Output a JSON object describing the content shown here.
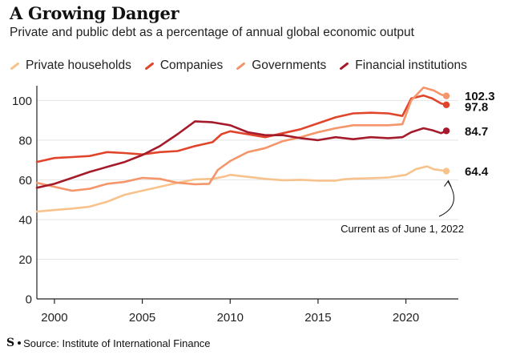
{
  "header": {
    "title": "A Growing Danger",
    "subtitle": "Private and public debt as a percentage of annual global economic output"
  },
  "source": {
    "logo": "S",
    "text": "Source: Institute of International Finance"
  },
  "annotation": "Current as of June 1, 2022",
  "chart_data": {
    "type": "line",
    "title": "A Growing Danger",
    "subtitle": "Private and public debt as a percentage of annual global economic output",
    "xlabel": "",
    "ylabel": "",
    "xlim": [
      1999,
      2022.8
    ],
    "ylim": [
      0,
      105
    ],
    "x_ticks": [
      2000,
      2005,
      2010,
      2015,
      2020
    ],
    "y_ticks": [
      0,
      20,
      40,
      60,
      80,
      100
    ],
    "grid": "horizontal",
    "legend": "top",
    "series": [
      {
        "name": "Private households",
        "color": "#f7c28c",
        "end_label": "64.4",
        "points": [
          [
            1999,
            44
          ],
          [
            2000,
            44.8
          ],
          [
            2001,
            45.5
          ],
          [
            2002,
            46.5
          ],
          [
            2003,
            49
          ],
          [
            2004,
            52.5
          ],
          [
            2005,
            54.5
          ],
          [
            2006,
            56.5
          ],
          [
            2007,
            58.5
          ],
          [
            2008,
            60.2
          ],
          [
            2009,
            60.5
          ],
          [
            2009.6,
            61.5
          ],
          [
            2010,
            62.5
          ],
          [
            2011,
            61.5
          ],
          [
            2012,
            60.5
          ],
          [
            2013,
            59.8
          ],
          [
            2014,
            60
          ],
          [
            2015,
            59.6
          ],
          [
            2016,
            59.6
          ],
          [
            2016.5,
            60.3
          ],
          [
            2017,
            60.6
          ],
          [
            2018,
            60.8
          ],
          [
            2019,
            61.2
          ],
          [
            2020,
            62.5
          ],
          [
            2020.6,
            65.5
          ],
          [
            2021.2,
            66.8
          ],
          [
            2021.6,
            65.3
          ],
          [
            2022,
            64.8
          ],
          [
            2022.3,
            64.4
          ]
        ]
      },
      {
        "name": "Companies",
        "color": "#e0452b",
        "end_label": "97.8",
        "points": [
          [
            1999,
            69
          ],
          [
            2000,
            71
          ],
          [
            2001,
            71.5
          ],
          [
            2002,
            72
          ],
          [
            2003,
            74
          ],
          [
            2004,
            73.5
          ],
          [
            2005,
            72.8
          ],
          [
            2006,
            74
          ],
          [
            2007,
            74.5
          ],
          [
            2008,
            77
          ],
          [
            2009,
            79
          ],
          [
            2009.5,
            83
          ],
          [
            2010,
            84.5
          ],
          [
            2011,
            83
          ],
          [
            2012,
            81.5
          ],
          [
            2013,
            83.5
          ],
          [
            2014,
            85.5
          ],
          [
            2015,
            88.5
          ],
          [
            2016,
            91.5
          ],
          [
            2017,
            93.5
          ],
          [
            2018,
            93.8
          ],
          [
            2019,
            93.5
          ],
          [
            2019.8,
            92.2
          ],
          [
            2020.3,
            101
          ],
          [
            2021,
            102.5
          ],
          [
            2021.5,
            101
          ],
          [
            2022,
            98.5
          ],
          [
            2022.3,
            97.8
          ]
        ]
      },
      {
        "name": "Governments",
        "color": "#f4956a",
        "end_label": "102.3",
        "points": [
          [
            1999,
            58.5
          ],
          [
            2000,
            56.5
          ],
          [
            2001,
            54.5
          ],
          [
            2002,
            55.5
          ],
          [
            2003,
            58
          ],
          [
            2004,
            59
          ],
          [
            2005,
            61
          ],
          [
            2006,
            60.5
          ],
          [
            2007,
            58.5
          ],
          [
            2008,
            57.8
          ],
          [
            2008.8,
            58
          ],
          [
            2009.3,
            65
          ],
          [
            2010,
            69.5
          ],
          [
            2011,
            74
          ],
          [
            2012,
            76
          ],
          [
            2013,
            79.5
          ],
          [
            2014,
            81.5
          ],
          [
            2015,
            84
          ],
          [
            2016,
            86
          ],
          [
            2017,
            87.5
          ],
          [
            2018,
            87.5
          ],
          [
            2019,
            87.5
          ],
          [
            2019.8,
            88
          ],
          [
            2020.3,
            100
          ],
          [
            2021,
            106.5
          ],
          [
            2021.6,
            105
          ],
          [
            2022,
            103
          ],
          [
            2022.3,
            102.3
          ]
        ]
      },
      {
        "name": "Financial institutions",
        "color": "#a51b2b",
        "end_label": "84.7",
        "points": [
          [
            1999,
            56
          ],
          [
            2000,
            58
          ],
          [
            2001,
            61
          ],
          [
            2002,
            64
          ],
          [
            2003,
            66.5
          ],
          [
            2004,
            69
          ],
          [
            2005,
            72.5
          ],
          [
            2006,
            77
          ],
          [
            2007,
            83
          ],
          [
            2008,
            89.5
          ],
          [
            2009,
            89
          ],
          [
            2010,
            87.5
          ],
          [
            2011,
            84
          ],
          [
            2012,
            82.5
          ],
          [
            2013,
            82.5
          ],
          [
            2014,
            81
          ],
          [
            2015,
            80
          ],
          [
            2016,
            81.5
          ],
          [
            2017,
            80.5
          ],
          [
            2018,
            81.5
          ],
          [
            2019,
            81
          ],
          [
            2019.8,
            81.5
          ],
          [
            2020.3,
            84
          ],
          [
            2021,
            86
          ],
          [
            2021.5,
            85
          ],
          [
            2022,
            83.5
          ],
          [
            2022.3,
            84.7
          ]
        ]
      }
    ]
  }
}
